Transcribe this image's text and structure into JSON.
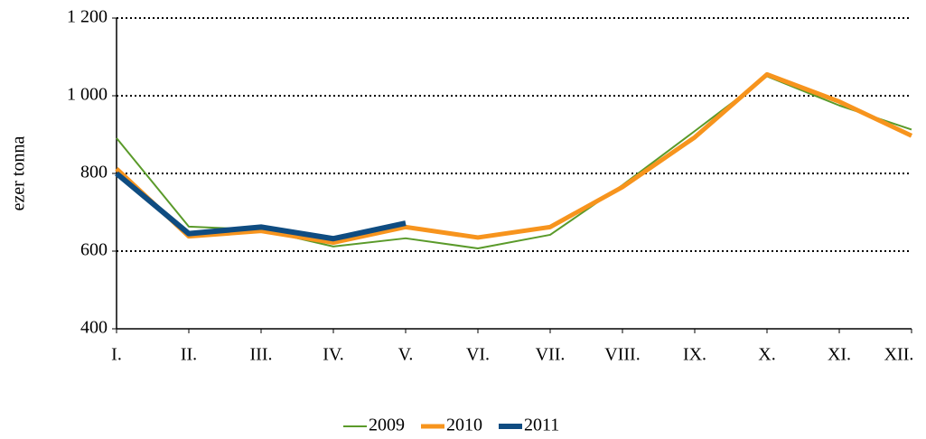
{
  "chart_data": {
    "type": "line",
    "y_label": "ezer tonna",
    "categories": [
      "I.",
      "II.",
      "III.",
      "IV.",
      "V.",
      "VI.",
      "VII.",
      "VIII.",
      "IX.",
      "X.",
      "XI.",
      "XII."
    ],
    "series": [
      {
        "name": "2009",
        "color": "#5a9a2a",
        "values": [
          891,
          663,
          655,
          612,
          633,
          607,
          642,
          770,
          909,
          1050,
          975,
          913
        ]
      },
      {
        "name": "2010",
        "color": "#f7941d",
        "values": [
          812,
          638,
          652,
          622,
          662,
          635,
          662,
          765,
          893,
          1055,
          985,
          897
        ]
      },
      {
        "name": "2011",
        "color": "#0f4c81",
        "values": [
          800,
          645,
          662,
          632,
          672,
          null,
          null,
          null,
          null,
          null,
          null,
          null
        ]
      }
    ],
    "ylim": [
      400,
      1200
    ],
    "yticks": [
      400,
      600,
      800,
      {
        "value": 1000,
        "label": "1 000"
      },
      {
        "value": 1200,
        "label": "1 200"
      }
    ],
    "grid": true,
    "legend": "bottom"
  }
}
